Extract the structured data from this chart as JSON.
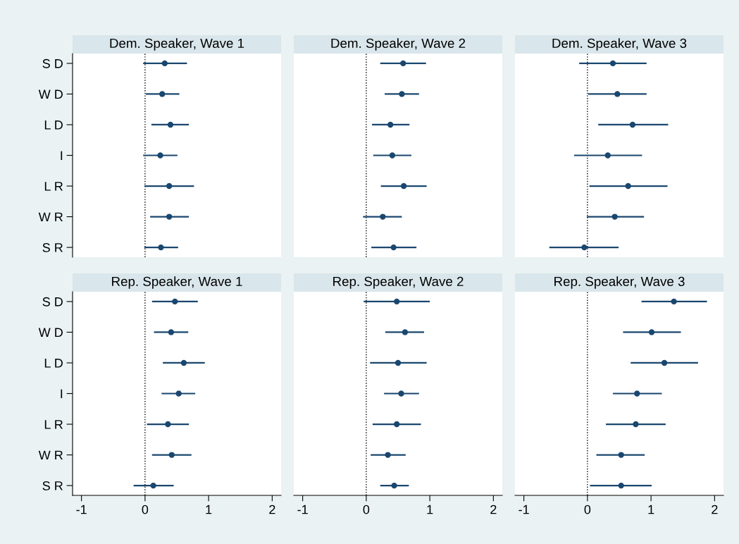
{
  "chart_data": [
    {
      "type": "scatter",
      "title": "Dem. Speaker, Wave 1",
      "orientation": "horizontal",
      "categories": [
        "S D",
        "W D",
        "L D",
        "I",
        "L R",
        "W R",
        "S R"
      ],
      "values": [
        0.31,
        0.27,
        0.4,
        0.24,
        0.38,
        0.38,
        0.25
      ],
      "errors": [
        [
          -0.03,
          0.66
        ],
        [
          0.01,
          0.54
        ],
        [
          0.1,
          0.69
        ],
        [
          -0.03,
          0.51
        ],
        [
          -0.01,
          0.77
        ],
        [
          0.08,
          0.69
        ],
        [
          -0.01,
          0.52
        ]
      ],
      "color": "#1a476f",
      "marker": "circle",
      "xlim": [
        -1.14,
        2.14
      ],
      "xticks": [
        -1,
        0,
        1,
        2
      ],
      "ref_lines": [
        {
          "axis": "x",
          "value": 0,
          "line_style": "dotted",
          "color": "#000000"
        }
      ],
      "tick_labels": "y",
      "grid": false,
      "legend": false
    },
    {
      "type": "scatter",
      "title": "Dem. Speaker, Wave 2",
      "orientation": "horizontal",
      "categories": [
        null,
        null,
        null,
        null,
        null,
        null,
        null
      ],
      "values": [
        0.58,
        0.56,
        0.38,
        0.41,
        0.59,
        0.26,
        0.43
      ],
      "errors": [
        [
          0.22,
          0.94
        ],
        [
          0.29,
          0.83
        ],
        [
          0.09,
          0.68
        ],
        [
          0.11,
          0.71
        ],
        [
          0.23,
          0.95
        ],
        [
          -0.05,
          0.56
        ],
        [
          0.08,
          0.79
        ]
      ],
      "color": "#1a476f",
      "marker": "circle",
      "xlim": [
        -1.14,
        2.14
      ],
      "xticks": [
        -1,
        0,
        1,
        2
      ],
      "ref_lines": [
        {
          "axis": "x",
          "value": 0,
          "line_style": "dotted",
          "color": "#000000"
        }
      ],
      "tick_labels": false,
      "grid": false,
      "legend": false
    },
    {
      "type": "scatter",
      "title": "Dem. Speaker, Wave 3",
      "orientation": "horizontal",
      "categories": [
        null,
        null,
        null,
        null,
        null,
        null,
        null
      ],
      "values": [
        0.4,
        0.47,
        0.71,
        0.32,
        0.64,
        0.43,
        -0.05
      ],
      "errors": [
        [
          -0.13,
          0.93
        ],
        [
          0.01,
          0.93
        ],
        [
          0.17,
          1.27
        ],
        [
          -0.21,
          0.86
        ],
        [
          0.03,
          1.26
        ],
        [
          -0.01,
          0.89
        ],
        [
          -0.6,
          0.49
        ]
      ],
      "color": "#1a476f",
      "marker": "circle",
      "xlim": [
        -1.14,
        2.14
      ],
      "xticks": [
        -1,
        0,
        1,
        2
      ],
      "ref_lines": [
        {
          "axis": "x",
          "value": 0,
          "line_style": "dotted",
          "color": "#000000"
        }
      ],
      "tick_labels": false,
      "grid": false,
      "legend": false
    },
    {
      "type": "scatter",
      "title": "Rep. Speaker, Wave 1",
      "orientation": "horizontal",
      "categories": [
        "S D",
        "W D",
        "L D",
        "I",
        "L R",
        "W R",
        "S R"
      ],
      "values": [
        0.47,
        0.41,
        0.61,
        0.53,
        0.36,
        0.42,
        0.13
      ],
      "errors": [
        [
          0.11,
          0.83
        ],
        [
          0.14,
          0.68
        ],
        [
          0.28,
          0.94
        ],
        [
          0.26,
          0.79
        ],
        [
          0.03,
          0.69
        ],
        [
          0.11,
          0.73
        ],
        [
          -0.18,
          0.45
        ]
      ],
      "color": "#1a476f",
      "marker": "circle",
      "xlim": [
        -1.14,
        2.14
      ],
      "xticks": [
        -1,
        0,
        1,
        2
      ],
      "ref_lines": [
        {
          "axis": "x",
          "value": 0,
          "line_style": "dotted",
          "color": "#000000"
        }
      ],
      "grid": false,
      "legend": false
    },
    {
      "type": "scatter",
      "title": "Rep. Speaker, Wave 2",
      "orientation": "horizontal",
      "categories": [
        null,
        null,
        null,
        null,
        null,
        null,
        null
      ],
      "values": [
        0.48,
        0.61,
        0.5,
        0.55,
        0.48,
        0.34,
        0.44
      ],
      "errors": [
        [
          -0.04,
          1.0
        ],
        [
          0.3,
          0.91
        ],
        [
          0.06,
          0.95
        ],
        [
          0.28,
          0.83
        ],
        [
          0.1,
          0.86
        ],
        [
          0.07,
          0.62
        ],
        [
          0.22,
          0.67
        ]
      ],
      "color": "#1a476f",
      "marker": "circle",
      "xlim": [
        -1.14,
        2.14
      ],
      "xticks": [
        -1,
        0,
        1,
        2
      ],
      "ref_lines": [
        {
          "axis": "x",
          "value": 0,
          "line_style": "dotted",
          "color": "#000000"
        }
      ],
      "tick_labels": "x",
      "grid": false,
      "legend": false
    },
    {
      "type": "scatter",
      "title": "Rep. Speaker, Wave 3",
      "orientation": "horizontal",
      "categories": [
        null,
        null,
        null,
        null,
        null,
        null,
        null
      ],
      "values": [
        1.36,
        1.01,
        1.21,
        0.78,
        0.76,
        0.53,
        0.53
      ],
      "errors": [
        [
          0.85,
          1.88
        ],
        [
          0.56,
          1.47
        ],
        [
          0.68,
          1.74
        ],
        [
          0.4,
          1.17
        ],
        [
          0.29,
          1.23
        ],
        [
          0.14,
          0.9
        ],
        [
          0.04,
          1.01
        ]
      ],
      "color": "#1a476f",
      "marker": "circle",
      "xlim": [
        -1.14,
        2.14
      ],
      "xticks": [
        -1,
        0,
        1,
        2
      ],
      "ref_lines": [
        {
          "axis": "x",
          "value": 0,
          "line_style": "dotted",
          "color": "#000000"
        }
      ],
      "tick_labels": "x",
      "grid": false,
      "legend": false
    }
  ]
}
